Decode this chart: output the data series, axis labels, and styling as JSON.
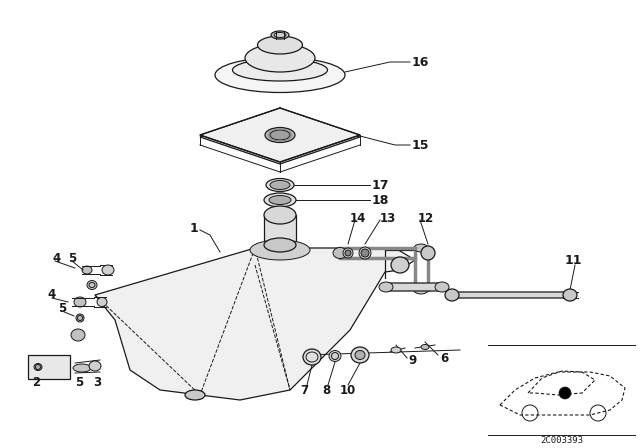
{
  "bg_color": "#ffffff",
  "line_color": "#1a1a1a",
  "part_id": "2C003393"
}
